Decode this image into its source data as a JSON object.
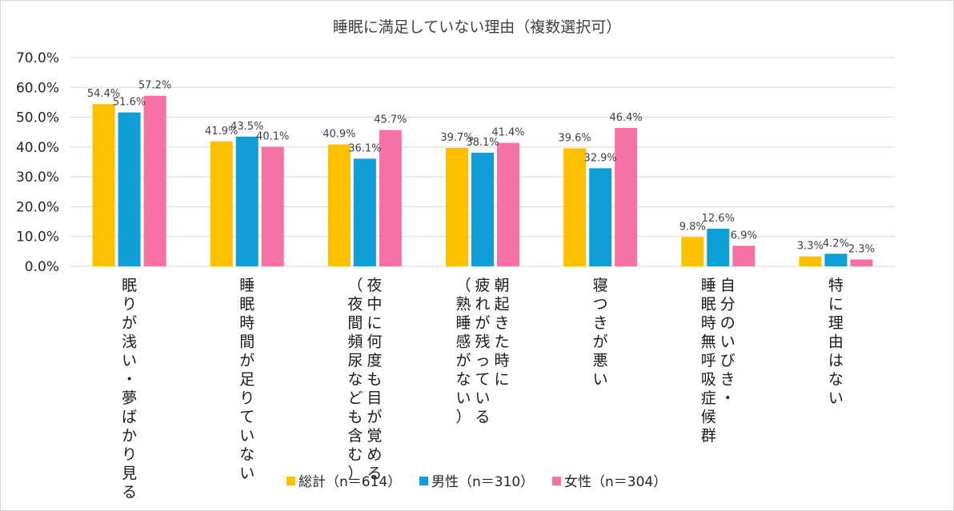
{
  "chart_data": {
    "type": "bar",
    "title": "睡眠に満足していない理由（複数選択可）",
    "xlabel": "",
    "ylabel": "",
    "ylim": [
      0,
      70
    ],
    "yticks": [
      "0.0%",
      "10.0%",
      "20.0%",
      "30.0%",
      "40.0%",
      "50.0%",
      "60.0%",
      "70.0%"
    ],
    "grid": true,
    "legend_position": "bottom",
    "categories": [
      [
        "眠りが浅い・夢ばかり見る"
      ],
      [
        "睡眠時間が足りていない"
      ],
      [
        "夜中に何度も目が覚める",
        "（夜間頻尿なども含む）"
      ],
      [
        "朝起きた時に",
        "疲れが残っている",
        "（熟睡感がない）"
      ],
      [
        "寝つきが悪い"
      ],
      [
        "自分のいびき・",
        "睡眠時無呼吸症候群"
      ],
      [
        "特に理由はない"
      ]
    ],
    "series": [
      {
        "name": "総計（n＝614）",
        "color": "#ffc000",
        "values": [
          54.4,
          41.9,
          40.9,
          39.7,
          39.6,
          9.8,
          3.3
        ],
        "labels": [
          "54.4%",
          "41.9%",
          "40.9%",
          "39.7%",
          "39.6%",
          "9.8%",
          "3.3%"
        ]
      },
      {
        "name": "男性（n＝310）",
        "color": "#0f9ed5",
        "values": [
          51.6,
          43.5,
          36.1,
          38.1,
          32.9,
          12.6,
          4.2
        ],
        "labels": [
          "51.6%",
          "43.5%",
          "36.1%",
          "38.1%",
          "32.9%",
          "12.6%",
          "4.2%"
        ]
      },
      {
        "name": "女性（n＝304）",
        "color": "#f672a4",
        "values": [
          57.2,
          40.1,
          45.7,
          41.4,
          46.4,
          6.9,
          2.3
        ],
        "labels": [
          "57.2%",
          "40.1%",
          "45.7%",
          "41.4%",
          "46.4%",
          "6.9%",
          "2.3%"
        ]
      }
    ]
  }
}
